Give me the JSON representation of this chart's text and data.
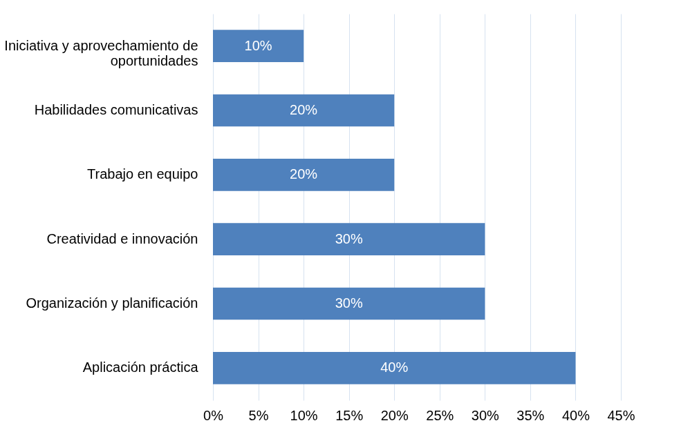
{
  "chart_data": {
    "type": "bar",
    "orientation": "horizontal",
    "categories": [
      "Iniciativa y aprovechamiento de oportunidades",
      "Habilidades comunicativas",
      "Trabajo en equipo",
      "Creatividad e innovación",
      "Organización y planificación",
      "Aplicación práctica"
    ],
    "values": [
      10,
      20,
      20,
      30,
      30,
      40
    ],
    "value_labels": [
      "10%",
      "20%",
      "20%",
      "30%",
      "30%",
      "40%"
    ],
    "color": "#4f81bd",
    "xlim": [
      0,
      45
    ],
    "xticks": [
      {
        "value": 0,
        "label": "0%"
      },
      {
        "value": 5,
        "label": "5%"
      },
      {
        "value": 10,
        "label": "10%"
      },
      {
        "value": 15,
        "label": "15%"
      },
      {
        "value": 20,
        "label": "20%"
      },
      {
        "value": 25,
        "label": "25%"
      },
      {
        "value": 30,
        "label": "30%"
      },
      {
        "value": 35,
        "label": "35%"
      },
      {
        "value": 40,
        "label": "40%"
      },
      {
        "value": 45,
        "label": "45%"
      }
    ],
    "grid": "x"
  }
}
